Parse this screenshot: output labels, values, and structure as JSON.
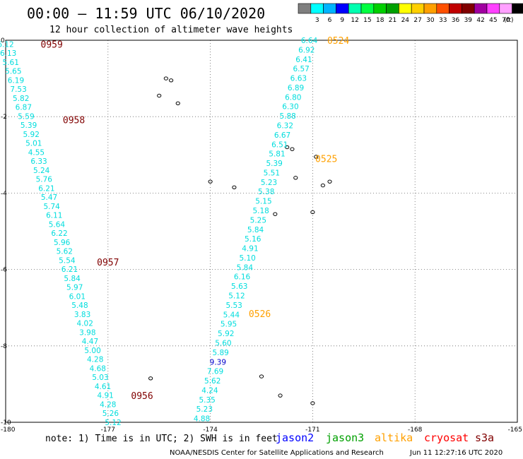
{
  "header": {
    "title": "00:00 – 11:59 UTC 06/10/2020",
    "subtitle": "12 hour collection of altimeter wave heights"
  },
  "colorbar": {
    "unit": "(ft)",
    "bins": [
      {
        "color": "#7f7f7f",
        "label": ""
      },
      {
        "color": "#00ffff",
        "label": "3"
      },
      {
        "color": "#00b4ff",
        "label": "6"
      },
      {
        "color": "#0000ff",
        "label": "9"
      },
      {
        "color": "#00ffb0",
        "label": "12"
      },
      {
        "color": "#00ff40",
        "label": "15"
      },
      {
        "color": "#00d000",
        "label": "18"
      },
      {
        "color": "#00a000",
        "label": "21"
      },
      {
        "color": "#ffff00",
        "label": "24"
      },
      {
        "color": "#ffd000",
        "label": "27"
      },
      {
        "color": "#ffa000",
        "label": "30"
      },
      {
        "color": "#ff5000",
        "label": "33"
      },
      {
        "color": "#c00000",
        "label": "36"
      },
      {
        "color": "#800000",
        "label": "39"
      },
      {
        "color": "#a000a0",
        "label": "42"
      },
      {
        "color": "#ff40ff",
        "label": "45"
      },
      {
        "color": "#ffa0ff",
        "label": "70"
      },
      {
        "color": "#000000",
        "label": ""
      }
    ]
  },
  "footer": {
    "note": "note: 1) Time is in UTC; 2) SWH is in feet",
    "credit": "NOAA/NESDIS Center for Satellite Applications and Research",
    "timestamp": "Jun 11 12:27:16 UTC 2020",
    "satellites": [
      {
        "name": "jason2",
        "color": "#0000ff"
      },
      {
        "name": "jason3",
        "color": "#00a000"
      },
      {
        "name": "altika",
        "color": "#ffa000"
      },
      {
        "name": "cryosat",
        "color": "#ff0000"
      },
      {
        "name": "s3a",
        "color": "#800000"
      }
    ]
  },
  "chart_data": {
    "type": "scatter",
    "title": "12 hour collection of altimeter wave heights",
    "xlim": [
      -180,
      -165
    ],
    "ylim": [
      -10,
      0
    ],
    "x_ticks": [
      "-180",
      "-177",
      "-174",
      "-171",
      "-168",
      "-165"
    ],
    "y_ticks": [
      "0",
      "-2",
      "-4",
      "-6",
      "-8",
      "-10"
    ],
    "grid": true,
    "color_low": "#00dddd",
    "color_high": "#0000cc",
    "tracks": [
      {
        "satellite": "s3a",
        "color": "#800000",
        "start": {
          "lon": -180.0,
          "lat": -0.1
        },
        "end": {
          "lon": -176.85,
          "lat": -10.0
        },
        "values": [
          "6.12",
          "6.13",
          "5.61",
          "5.65",
          "6.19",
          "7.53",
          "5.82",
          "6.87",
          "5.59",
          "5.39",
          "5.92",
          "5.01",
          "4.55",
          "6.33",
          "5.24",
          "5.76",
          "6.21",
          "5.47",
          "5.74",
          "6.11",
          "5.64",
          "6.22",
          "5.96",
          "5.62",
          "5.54",
          "6.21",
          "5.84",
          "5.97",
          "6.01",
          "5.48",
          "3.83",
          "4.02",
          "3.98",
          "4.47",
          "5.00",
          "4.28",
          "4.68",
          "5.03",
          "4.61",
          "4.91",
          "4.28",
          "5.26",
          "5.12"
        ],
        "times": [
          {
            "label": "0959",
            "lon": -178.65,
            "lat": -0.1
          },
          {
            "label": "0958",
            "lon": -178.0,
            "lat": -2.08
          },
          {
            "label": "0957",
            "lon": -177.0,
            "lat": -5.8
          },
          {
            "label": "0956",
            "lon": -176.0,
            "lat": -9.3
          }
        ]
      },
      {
        "satellite": "altika",
        "color": "#ffa000",
        "start": {
          "lon": -171.1,
          "lat": 0.0
        },
        "end": {
          "lon": -174.25,
          "lat": -9.9
        },
        "values": [
          "6.64",
          "6.92",
          "6.41",
          "6.57",
          "6.63",
          "6.89",
          "6.80",
          "6.30",
          "5.88",
          "6.32",
          "6.67",
          "6.51",
          "5.81",
          "5.39",
          "5.51",
          "5.23",
          "5.38",
          "5.15",
          "5.18",
          "5.25",
          "5.84",
          "5.16",
          "4.91",
          "5.10",
          "5.84",
          "6.16",
          "5.63",
          "5.12",
          "5.53",
          "5.44",
          "5.95",
          "5.92",
          "5.60",
          "5.89",
          "9.39",
          "7.69",
          "5.62",
          "4.24",
          "5.35",
          "5.23",
          "4.88"
        ],
        "times": [
          {
            "label": "0524",
            "lon": -170.25,
            "lat": 0.0
          },
          {
            "label": "0525",
            "lon": -170.6,
            "lat": -3.1
          },
          {
            "label": "0526",
            "lon": -172.55,
            "lat": -7.15
          }
        ]
      }
    ],
    "islands": [
      {
        "lon": -175.3,
        "lat": -1.0
      },
      {
        "lon": -175.15,
        "lat": -1.05
      },
      {
        "lon": -175.5,
        "lat": -1.45
      },
      {
        "lon": -174.95,
        "lat": -1.65
      },
      {
        "lon": -174.0,
        "lat": -3.7
      },
      {
        "lon": -173.3,
        "lat": -3.85
      },
      {
        "lon": -171.75,
        "lat": -2.8
      },
      {
        "lon": -171.6,
        "lat": -2.85
      },
      {
        "lon": -170.9,
        "lat": -3.05
      },
      {
        "lon": -171.5,
        "lat": -3.6
      },
      {
        "lon": -170.5,
        "lat": -3.7
      },
      {
        "lon": -170.7,
        "lat": -3.8
      },
      {
        "lon": -172.1,
        "lat": -4.55
      },
      {
        "lon": -171.0,
        "lat": -4.5
      },
      {
        "lon": -175.75,
        "lat": -8.85
      },
      {
        "lon": -172.5,
        "lat": -8.8
      },
      {
        "lon": -171.95,
        "lat": -9.3
      },
      {
        "lon": -171.0,
        "lat": -9.5
      }
    ]
  }
}
